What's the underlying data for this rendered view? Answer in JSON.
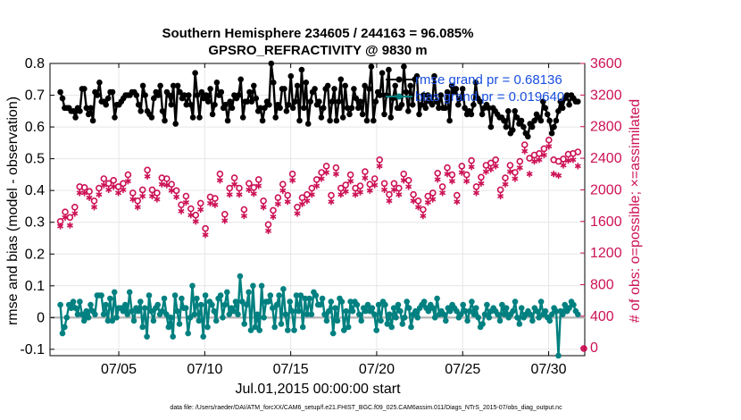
{
  "chart_data": {
    "type": "line",
    "title_line1": "Southern Hemisphere 234605 / 244163 = 96.085%",
    "title_line2": "GPSRO_REFRACTIVITY @ 9830 m",
    "xlabel": "Jul.01,2015 00:00:00 start",
    "ylabel": "rmse and bias (model - observation)",
    "ylabel_right": "# of obs: o=possible; ×=assimilated",
    "xlim": [
      1,
      32.1
    ],
    "ylim": [
      -0.12,
      0.8
    ],
    "ylim_right": [
      -100,
      3600
    ],
    "x_ticks": [
      5,
      10,
      15,
      20,
      25,
      30
    ],
    "x_tick_labels": [
      "07/05",
      "07/10",
      "07/15",
      "07/20",
      "07/25",
      "07/30"
    ],
    "y_ticks": [
      -0.1,
      0,
      0.1,
      0.2,
      0.3,
      0.4,
      0.5,
      0.6,
      0.7,
      0.8
    ],
    "y_tick_labels": [
      "-0.1",
      "0",
      "0.1",
      "0.2",
      "0.3",
      "0.4",
      "0.5",
      "0.6",
      "0.7",
      "0.8"
    ],
    "y_right_ticks": [
      0,
      400,
      800,
      1200,
      1600,
      2000,
      2400,
      2800,
      3200,
      3600
    ],
    "y_right_tick_labels": [
      "0",
      "400",
      "800",
      "1200",
      "1600",
      "2000",
      "2400",
      "2800",
      "3200",
      "3600"
    ],
    "grid": true,
    "legend_position": "top-right",
    "series": [
      {
        "name": "rmse grand pr = 0.68136",
        "legend_label": "rmse grand pr = 0.68136",
        "axis": "left",
        "color": "#000000",
        "marker": "filled-circle",
        "values": [
          0.71,
          0.69,
          0.66,
          0.66,
          0.66,
          0.65,
          0.65,
          0.63,
          0.66,
          0.65,
          0.72,
          0.72,
          0.66,
          0.64,
          0.66,
          0.62,
          0.71,
          0.7,
          0.74,
          0.68,
          0.68,
          0.67,
          0.69,
          0.71,
          0.71,
          0.63,
          0.67,
          0.67,
          0.68,
          0.69,
          0.7,
          0.7,
          0.7,
          0.71,
          0.71,
          0.7,
          0.67,
          0.65,
          0.73,
          0.7,
          0.65,
          0.64,
          0.63,
          0.69,
          0.71,
          0.7,
          0.73,
          0.65,
          0.62,
          0.71,
          0.7,
          0.67,
          0.73,
          0.61,
          0.73,
          0.71,
          0.69,
          0.7,
          0.67,
          0.7,
          0.67,
          0.63,
          0.77,
          0.7,
          0.63,
          0.71,
          0.69,
          0.7,
          0.68,
          0.72,
          0.64,
          0.67,
          0.74,
          0.7,
          0.71,
          0.66,
          0.67,
          0.62,
          0.68,
          0.66,
          0.7,
          0.69,
          0.7,
          0.75,
          0.63,
          0.68,
          0.68,
          0.71,
          0.68,
          0.73,
          0.69,
          0.65,
          0.66,
          0.62,
          0.66,
          0.68,
          0.67,
          0.8,
          0.74,
          0.63,
          0.67,
          0.66,
          0.72,
          0.72,
          0.65,
          0.67,
          0.76,
          0.66,
          0.68,
          0.73,
          0.62,
          0.78,
          0.66,
          0.74,
          0.61,
          0.68,
          0.71,
          0.72,
          0.67,
          0.68,
          0.63,
          0.66,
          0.72,
          0.73,
          0.62,
          0.68,
          0.72,
          0.62,
          0.68,
          0.75,
          0.63,
          0.73,
          0.66,
          0.64,
          0.66,
          0.72,
          0.69,
          0.66,
          0.68,
          0.64,
          0.73,
          0.62,
          0.72,
          0.79,
          0.62,
          0.68,
          0.71,
          0.7,
          0.77,
          0.64,
          0.7,
          0.78,
          0.63,
          0.69,
          0.73,
          0.66,
          0.66,
          0.67,
          0.79,
          0.71,
          0.65,
          0.73,
          0.67,
          0.75,
          0.76,
          0.64,
          0.67,
          0.7,
          0.66,
          0.7,
          0.68,
          0.67,
          0.76,
          0.68,
          0.66,
          0.7,
          0.66,
          0.66,
          0.71,
          0.62,
          0.73,
          0.71,
          0.72,
          0.67,
          0.69,
          0.72,
          0.66,
          0.64,
          0.65,
          0.64,
          0.67,
          0.74,
          0.69,
          0.68,
          0.64,
          0.66,
          0.67,
          0.66,
          0.6,
          0.66,
          0.65,
          0.64,
          0.63,
          0.63,
          0.62,
          0.6,
          0.65,
          0.58,
          0.59,
          0.65,
          0.63,
          0.61,
          0.62,
          0.6,
          0.58,
          0.57,
          0.61,
          0.6,
          0.62,
          0.64,
          0.63,
          0.62,
          0.68,
          0.66,
          0.64,
          0.62,
          0.58,
          0.6,
          0.62,
          0.65,
          0.68,
          0.66,
          0.69,
          0.7,
          0.67,
          0.7,
          0.69,
          0.68,
          0.68
        ]
      },
      {
        "name": "bias grand pr = 0.019640",
        "legend_label": "bias grand pr = 0.019640",
        "axis": "left",
        "color": "#008080",
        "marker": "filled-circle",
        "values": [
          0.04,
          -0.05,
          -0.03,
          0.0,
          0.04,
          0.03,
          0.05,
          0.03,
          0.01,
          0.05,
          0.01,
          -0.01,
          0.02,
          0.0,
          0.04,
          0.02,
          0.01,
          0.07,
          0.07,
          0.07,
          0.01,
          0.04,
          -0.01,
          0.06,
          -0.01,
          0.08,
          0.0,
          0.03,
          0.03,
          0.02,
          0.04,
          0.01,
          0.08,
          0.02,
          -0.01,
          0.03,
          0.02,
          0.05,
          -0.03,
          0.03,
          -0.06,
          0.07,
          0.02,
          -0.01,
          0.03,
          0.04,
          0.01,
          0.02,
          0.06,
          0.01,
          -0.03,
          0.0,
          -0.06,
          0.07,
          0.02,
          -0.02,
          0.06,
          0.03,
          0.03,
          -0.05,
          0.0,
          0.1,
          0.01,
          0.06,
          -0.01,
          0.04,
          -0.06,
          0.07,
          -0.03,
          0.05,
          0.04,
          0.02,
          -0.01,
          0.06,
          0.07,
          0.0,
          0.04,
          0.08,
          0.01,
          0.03,
          0.02,
          0.05,
          0.01,
          0.13,
          0.05,
          -0.02,
          0.04,
          0.08,
          -0.04,
          0.1,
          -0.03,
          0.01,
          -0.04,
          0.1,
          0.0,
          0.05,
          0.05,
          0.07,
          0.03,
          -0.03,
          0.04,
          0.07,
          -0.02,
          0.09,
          0.01,
          -0.04,
          0.05,
          0.02,
          -0.04,
          0.07,
          0.02,
          0.07,
          -0.03,
          0.06,
          0.01,
          0.06,
          0.01,
          0.08,
          0.07,
          0.04,
          0.04,
          0.06,
          0.01,
          -0.01,
          0.02,
          0.05,
          -0.05,
          0.03,
          -0.01,
          0.06,
          0.05,
          -0.04,
          0.02,
          -0.03,
          0.05,
          0.02,
          0.05,
          0.04,
          0.01,
          -0.01,
          0.03,
          0.02,
          0.04,
          0.02,
          0.03,
          0.01,
          -0.04,
          0.04,
          -0.01,
          0.05,
          0.04,
          -0.02,
          0.01,
          -0.03,
          0.03,
          0.0,
          0.04,
          0.02,
          -0.02,
          0.0,
          0.05,
          0.03,
          -0.03,
          0.01,
          0.02,
          0.0,
          0.03,
          0.04,
          0.05,
          0.03,
          0.02,
          0.04,
          0.03,
          0.0,
          0.06,
          0.01,
          0.02,
          0.01,
          -0.01,
          0.03,
          0.02,
          0.04,
          0.03,
          0.02,
          0.0,
          0.01,
          0.04,
          0.02,
          -0.01,
          0.02,
          0.05,
          0.01,
          0.03,
          0.0,
          -0.03,
          -0.02,
          0.01,
          0.04,
          0.0,
          0.02,
          0.03,
          0.02,
          0.01,
          -0.01,
          0.04,
          0.01,
          0.03,
          0.0,
          0.01,
          0.02,
          0.05,
          0.0,
          -0.02,
          0.03,
          0.0,
          0.01,
          0.02,
          0.01,
          -0.01,
          0.03,
          0.02,
          0.0,
          0.05,
          0.01,
          0.02,
          0.0,
          -0.01,
          0.01,
          0.03,
          0.02,
          -0.12,
          0.02,
          0.01,
          0.04,
          0.02,
          0.03,
          0.05,
          0.04,
          0.02,
          0.01
        ]
      },
      {
        "name": "# of obs possible",
        "axis": "right",
        "color": "#cc1155",
        "marker": "open-circle",
        "values": [
          1600,
          1720,
          1650,
          1780,
          2040,
          2030,
          1980,
          1860,
          2020,
          2140,
          2080,
          2120,
          2040,
          2080,
          2190,
          1960,
          1860,
          2000,
          2250,
          2000,
          1960,
          2150,
          2140,
          2070,
          1990,
          1810,
          1920,
          1760,
          1680,
          1830,
          1510,
          1910,
          1890,
          2200,
          1690,
          2020,
          2150,
          2020,
          1750,
          2080,
          2030,
          2130,
          1860,
          1560,
          1740,
          1900,
          2070,
          1930,
          2200,
          1780,
          1900,
          1940,
          2020,
          2130,
          2220,
          2300,
          1930,
          2280,
          2020,
          2060,
          2190,
          2020,
          2050,
          2230,
          2070,
          2140,
          2380,
          2080,
          1940,
          2080,
          2020,
          2200,
          2120,
          1940,
          1860,
          1750,
          1920,
          1960,
          2210,
          2040,
          2280,
          2190,
          1930,
          2300,
          2190,
          2370,
          2040,
          2160,
          2310,
          2340,
          2380,
          2000,
          2150,
          2310,
          2220,
          2360,
          2570,
          2400,
          2440,
          2460,
          2520,
          2630,
          2380,
          2360,
          2390,
          2450,
          2460,
          2480
        ]
      },
      {
        "name": "# of obs assimilated",
        "axis": "right",
        "color": "#cc1155",
        "marker": "asterisk",
        "values": [
          1540,
          1650,
          1550,
          1700,
          1960,
          1960,
          1900,
          1780,
          1940,
          2060,
          2000,
          2040,
          1960,
          2000,
          2110,
          1880,
          1780,
          1920,
          2170,
          1920,
          1880,
          2070,
          2060,
          1990,
          1910,
          1730,
          1840,
          1680,
          1600,
          1750,
          1430,
          1830,
          1810,
          2120,
          1610,
          1940,
          2070,
          1940,
          1670,
          2000,
          1950,
          2050,
          1780,
          1480,
          1660,
          1820,
          1990,
          1850,
          2120,
          1700,
          1820,
          1860,
          1940,
          2050,
          2140,
          2220,
          1850,
          2200,
          1940,
          1980,
          2110,
          1940,
          1970,
          2150,
          1990,
          2060,
          2300,
          2000,
          1860,
          2000,
          1940,
          2120,
          2040,
          1860,
          1780,
          1670,
          1840,
          1880,
          2130,
          1960,
          2200,
          2110,
          1850,
          2220,
          2110,
          2290,
          1960,
          2080,
          2230,
          2260,
          2300,
          1920,
          2070,
          2230,
          2140,
          2280,
          2490,
          2200,
          2360,
          2380,
          2440,
          2550,
          2200,
          2180,
          2310,
          2370,
          2380,
          2300
        ]
      }
    ],
    "last_obs_possible": -10,
    "last_obs_assimilated": -10
  },
  "footer": "data file: /Users/raeder/DAI/ATM_forcXX/CAM6_setup/f.e21.FHIST_BGC.f09_025.CAM6assim.011/Diags_NTrS_2015-07/obs_diag_output.nc"
}
